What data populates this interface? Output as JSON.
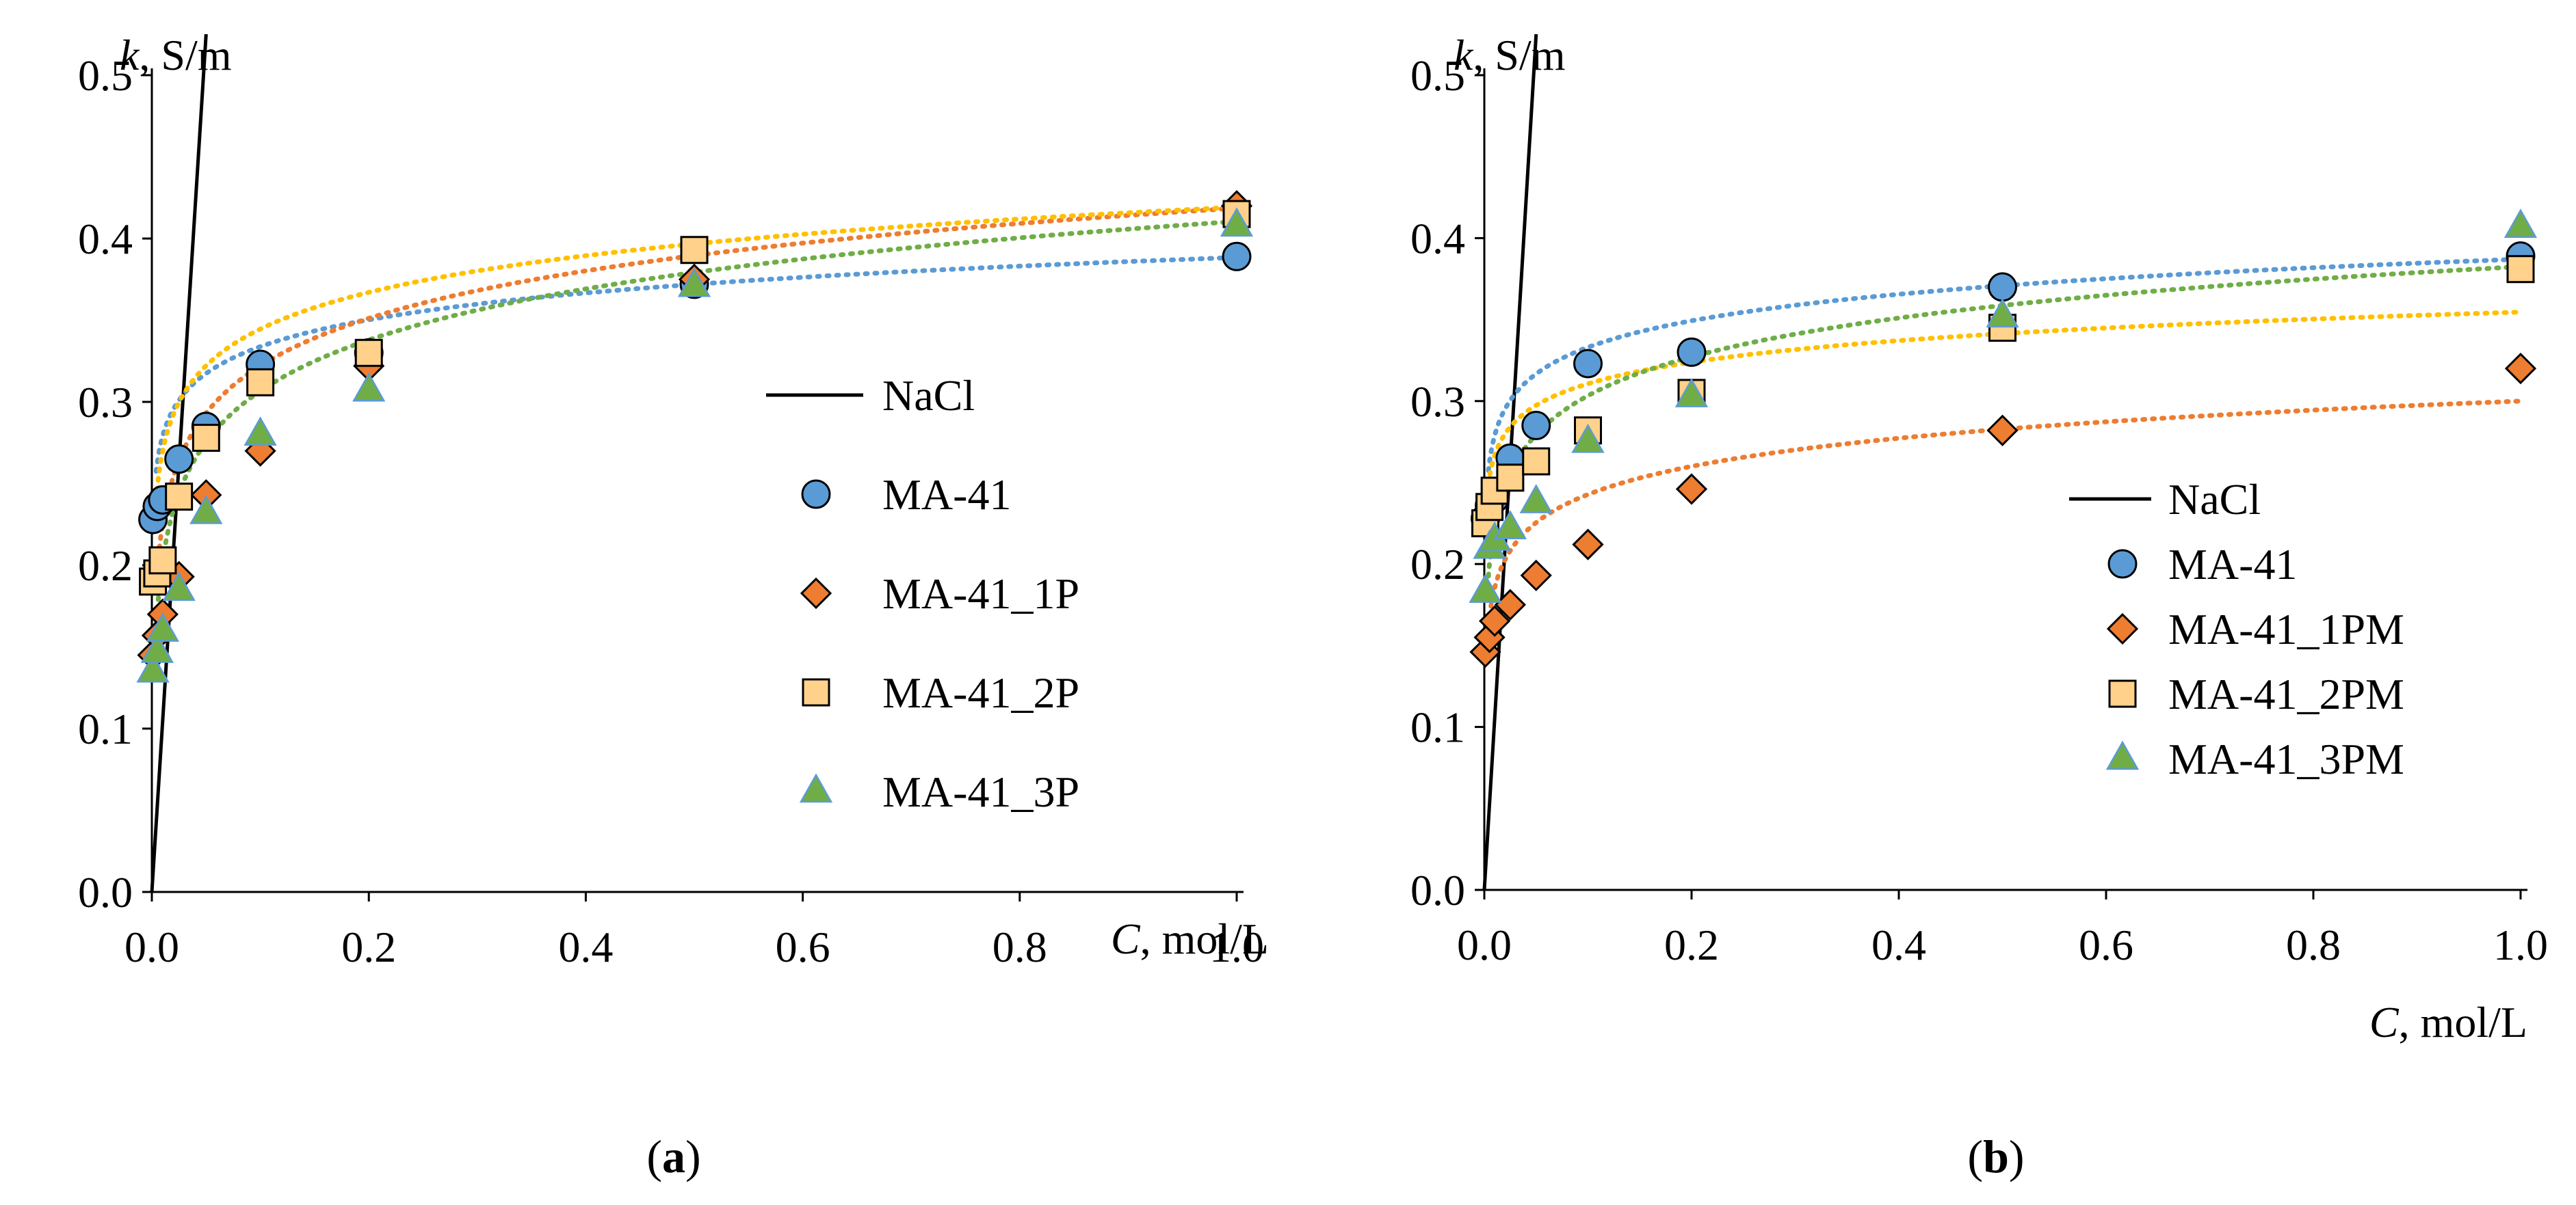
{
  "chart_data": [
    {
      "id": "a",
      "type": "scatter",
      "panel_label": "a",
      "y_axis_label_var": "k",
      "y_axis_label_unit": ", S/m",
      "x_axis_label_var": "C",
      "x_axis_label_unit": ", mol/L",
      "xlim": [
        0,
        1.0
      ],
      "ylim": [
        0,
        0.5
      ],
      "x_ticks": [
        "0.0",
        "0.2",
        "0.4",
        "0.6",
        "0.8",
        "1.0"
      ],
      "y_ticks": [
        "0.0",
        "0.1",
        "0.2",
        "0.3",
        "0.4",
        "0.5"
      ],
      "grid": false,
      "legend_position": "center-right",
      "nacl": {
        "name": "NaCl",
        "x": [
          0,
          0.05
        ],
        "y": [
          0,
          0.5
        ]
      },
      "series": [
        {
          "name": "MA-41",
          "marker": "circle",
          "color": "#5B9BD5",
          "trend_color": "#5B9BD5",
          "x": [
            0.001,
            0.005,
            0.01,
            0.025,
            0.05,
            0.1,
            0.2,
            0.5,
            1.0
          ],
          "y": [
            0.228,
            0.236,
            0.24,
            0.265,
            0.285,
            0.323,
            0.33,
            0.372,
            0.389
          ],
          "trend": {
            "a": 0.3884,
            "b": 0.0237
          }
        },
        {
          "name": "MA-41_1P",
          "marker": "diamond",
          "color": "#ED7D31",
          "trend_color": "#ED7D31",
          "x": [
            0.001,
            0.005,
            0.01,
            0.025,
            0.05,
            0.1,
            0.2,
            0.5,
            1.0
          ],
          "y": [
            0.145,
            0.157,
            0.17,
            0.193,
            0.243,
            0.27,
            0.322,
            0.375,
            0.42
          ],
          "trend": {
            "a": 0.4186,
            "b": 0.0419
          }
        },
        {
          "name": "MA-41_2P",
          "marker": "square",
          "color": "#FFD18A",
          "trend_color": "#FFC000",
          "x": [
            0.001,
            0.005,
            0.01,
            0.025,
            0.05,
            0.1,
            0.2,
            0.5,
            1.0
          ],
          "y": [
            0.19,
            0.195,
            0.203,
            0.242,
            0.278,
            0.312,
            0.33,
            0.393,
            0.415
          ],
          "trend": {
            "a": 0.4192,
            "b": 0.0324
          }
        },
        {
          "name": "MA-41_3P",
          "marker": "triangle",
          "color": "#70AD47",
          "trend_color": "#70AD47",
          "x": [
            0.001,
            0.005,
            0.01,
            0.025,
            0.05,
            0.1,
            0.2,
            0.5,
            1.0
          ],
          "y": [
            0.135,
            0.147,
            0.16,
            0.185,
            0.232,
            0.28,
            0.307,
            0.371,
            0.408
          ],
          "trend": {
            "a": 0.4105,
            "b": 0.0451
          }
        }
      ]
    },
    {
      "id": "b",
      "type": "scatter",
      "panel_label": "b",
      "y_axis_label_var": "k",
      "y_axis_label_unit": ", S/m",
      "x_axis_label_var": "C",
      "x_axis_label_unit": ", mol/L",
      "xlim": [
        0,
        1.0
      ],
      "ylim": [
        0,
        0.5
      ],
      "x_ticks": [
        "0.0",
        "0.2",
        "0.4",
        "0.6",
        "0.8",
        "1.0"
      ],
      "y_ticks": [
        "0.0",
        "0.1",
        "0.2",
        "0.3",
        "0.4",
        "0.5"
      ],
      "grid": false,
      "legend_position": "center-right",
      "nacl": {
        "name": "NaCl",
        "x": [
          0,
          0.05
        ],
        "y": [
          0,
          0.5
        ]
      },
      "series": [
        {
          "name": "MA-41",
          "marker": "circle",
          "color": "#5B9BD5",
          "trend_color": "#5B9BD5",
          "x": [
            0.001,
            0.005,
            0.01,
            0.025,
            0.05,
            0.1,
            0.2,
            0.5,
            1.0
          ],
          "y": [
            0.228,
            0.236,
            0.24,
            0.265,
            0.285,
            0.323,
            0.33,
            0.37,
            0.389
          ],
          "trend": {
            "a": 0.3871,
            "b": 0.0235
          }
        },
        {
          "name": "MA-41_1PM",
          "marker": "diamond",
          "color": "#ED7D31",
          "trend_color": "#ED7D31",
          "x": [
            0.001,
            0.005,
            0.01,
            0.025,
            0.05,
            0.1,
            0.2,
            0.5,
            1.0
          ],
          "y": [
            0.146,
            0.155,
            0.165,
            0.175,
            0.193,
            0.212,
            0.246,
            0.282,
            0.32
          ],
          "trend": {
            "a": 0.3,
            "b": 0.0249
          }
        },
        {
          "name": "MA-41_2PM",
          "marker": "square",
          "color": "#FFD18A",
          "trend_color": "#FFC000",
          "x": [
            0.001,
            0.005,
            0.01,
            0.025,
            0.05,
            0.1,
            0.2,
            0.5,
            1.0
          ],
          "y": [
            0.225,
            0.235,
            0.245,
            0.253,
            0.263,
            0.282,
            0.305,
            0.345,
            0.381
          ],
          "trend": {
            "a": 0.3546,
            "b": 0.0191
          }
        },
        {
          "name": "MA-41_3PM",
          "marker": "triangle",
          "color": "#70AD47",
          "trend_color": "#70AD47",
          "x": [
            0.001,
            0.005,
            0.01,
            0.025,
            0.05,
            0.1,
            0.2,
            0.5,
            1.0
          ],
          "y": [
            0.183,
            0.21,
            0.215,
            0.222,
            0.238,
            0.275,
            0.303,
            0.352,
            0.407
          ],
          "trend": {
            "a": 0.3825,
            "b": 0.0344
          }
        }
      ]
    }
  ]
}
